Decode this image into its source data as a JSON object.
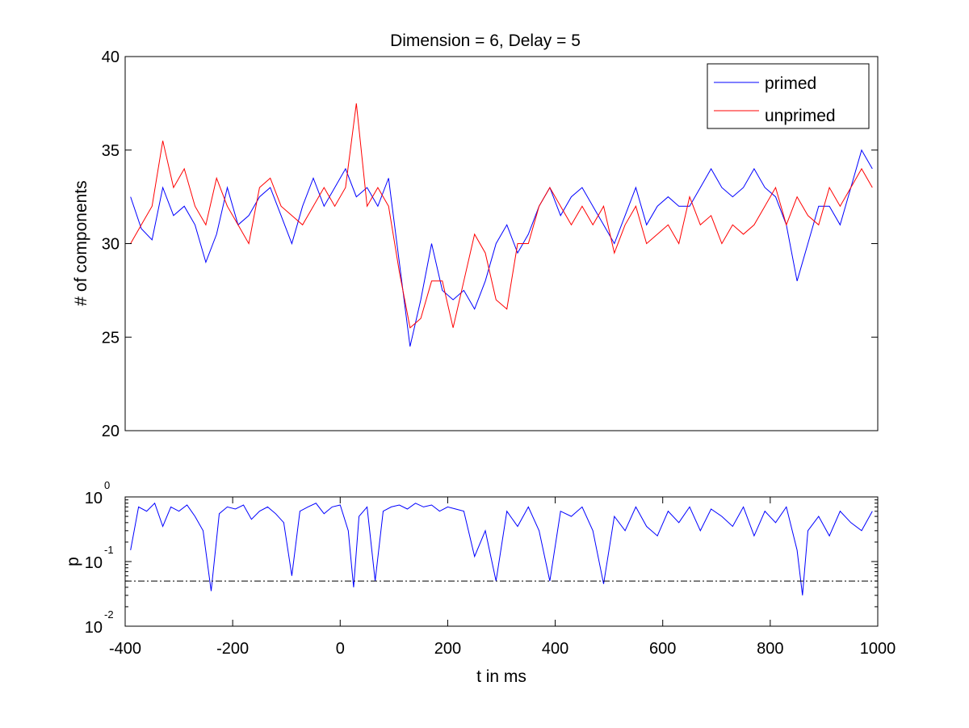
{
  "chart_data": [
    {
      "type": "line",
      "title": "Dimension  = 6, Delay = 5",
      "xlabel": "",
      "ylabel": "# of components",
      "xlim": [
        -400,
        1000
      ],
      "ylim": [
        20,
        40
      ],
      "yticks": [
        "20",
        "25",
        "30",
        "35",
        "40"
      ],
      "grid": false,
      "legend_position": "top-right",
      "series": [
        {
          "name": "primed",
          "color": "#0000ff",
          "x": [
            -390,
            -370,
            -350,
            -330,
            -310,
            -290,
            -270,
            -250,
            -230,
            -210,
            -190,
            -170,
            -150,
            -130,
            -110,
            -90,
            -70,
            -50,
            -30,
            -10,
            10,
            30,
            50,
            70,
            90,
            110,
            130,
            150,
            170,
            190,
            210,
            230,
            250,
            270,
            290,
            310,
            330,
            350,
            370,
            390,
            410,
            430,
            450,
            470,
            490,
            510,
            530,
            550,
            570,
            590,
            610,
            630,
            650,
            670,
            690,
            710,
            730,
            750,
            770,
            790,
            810,
            830,
            850,
            870,
            890,
            910,
            930,
            950,
            970,
            990
          ],
          "values": [
            32.5,
            30.8,
            30.2,
            33,
            31.5,
            32,
            31,
            29,
            30.5,
            33,
            31,
            31.5,
            32.5,
            33,
            31.5,
            30,
            32,
            33.5,
            32,
            33,
            34,
            32.5,
            33,
            32,
            33.5,
            29,
            24.5,
            27,
            30,
            27.5,
            27,
            27.5,
            26.5,
            28,
            30,
            31,
            29.5,
            30.5,
            32,
            33,
            31.5,
            32.5,
            33,
            32,
            31,
            30,
            31.5,
            33,
            31,
            32,
            32.5,
            32,
            32,
            33,
            34,
            33,
            32.5,
            33,
            34,
            33,
            32.5,
            31,
            28,
            30,
            32,
            32,
            31,
            33,
            35,
            34
          ]
        },
        {
          "name": "unprimed",
          "color": "#ff0000",
          "x": [
            -390,
            -370,
            -350,
            -330,
            -310,
            -290,
            -270,
            -250,
            -230,
            -210,
            -190,
            -170,
            -150,
            -130,
            -110,
            -90,
            -70,
            -50,
            -30,
            -10,
            10,
            30,
            50,
            70,
            90,
            110,
            130,
            150,
            170,
            190,
            210,
            230,
            250,
            270,
            290,
            310,
            330,
            350,
            370,
            390,
            410,
            430,
            450,
            470,
            490,
            510,
            530,
            550,
            570,
            590,
            610,
            630,
            650,
            670,
            690,
            710,
            730,
            750,
            770,
            790,
            810,
            830,
            850,
            870,
            890,
            910,
            930,
            950,
            970,
            990
          ],
          "values": [
            30,
            31,
            32,
            35.5,
            33,
            34,
            32,
            31,
            33.5,
            32,
            31,
            30,
            33,
            33.5,
            32,
            31.5,
            31,
            32,
            33,
            32,
            33,
            37.5,
            32,
            33,
            32,
            28.5,
            25.5,
            26,
            28,
            28,
            25.5,
            28,
            30.5,
            29.5,
            27,
            26.5,
            30,
            30,
            32,
            33,
            32,
            31,
            32,
            31,
            32,
            29.5,
            31,
            32,
            30,
            30.5,
            31,
            30,
            32.5,
            31,
            31.5,
            30,
            31,
            30.5,
            31,
            32,
            33,
            31,
            32.5,
            31.5,
            31,
            33,
            32,
            33,
            34,
            33
          ]
        }
      ]
    },
    {
      "type": "line",
      "title": "",
      "xlabel": "t in ms",
      "ylabel": "p",
      "xlim": [
        -400,
        1000
      ],
      "xticks": [
        "-400",
        "-200",
        "0",
        "200",
        "400",
        "600",
        "800",
        "1000"
      ],
      "ylim": [
        0.01,
        1
      ],
      "y_scale": "log",
      "yticks": [
        {
          "base": "10",
          "exp": "-2"
        },
        {
          "base": "10",
          "exp": "-1"
        },
        {
          "base": "10",
          "exp": "0"
        }
      ],
      "threshold_line": {
        "value": 0.05,
        "style": "dash-dot",
        "color": "#000000"
      },
      "series": [
        {
          "name": "",
          "color": "#0000ff",
          "x": [
            -390,
            -375,
            -360,
            -345,
            -330,
            -315,
            -300,
            -285,
            -270,
            -255,
            -240,
            -225,
            -210,
            -195,
            -180,
            -165,
            -150,
            -135,
            -120,
            -105,
            -90,
            -75,
            -60,
            -45,
            -30,
            -15,
            0,
            15,
            25,
            35,
            50,
            65,
            80,
            95,
            110,
            125,
            140,
            155,
            170,
            185,
            200,
            215,
            230,
            250,
            270,
            290,
            310,
            330,
            350,
            370,
            390,
            410,
            430,
            450,
            470,
            490,
            510,
            530,
            550,
            570,
            590,
            610,
            630,
            650,
            670,
            690,
            710,
            730,
            750,
            770,
            790,
            810,
            830,
            850,
            860,
            870,
            890,
            910,
            930,
            950,
            970,
            990
          ],
          "values": [
            0.15,
            0.7,
            0.6,
            0.8,
            0.35,
            0.7,
            0.6,
            0.75,
            0.5,
            0.3,
            0.035,
            0.55,
            0.7,
            0.65,
            0.75,
            0.45,
            0.6,
            0.7,
            0.55,
            0.4,
            0.06,
            0.6,
            0.7,
            0.8,
            0.55,
            0.7,
            0.75,
            0.3,
            0.04,
            0.5,
            0.7,
            0.05,
            0.6,
            0.7,
            0.75,
            0.65,
            0.8,
            0.7,
            0.75,
            0.6,
            0.7,
            0.65,
            0.6,
            0.12,
            0.3,
            0.05,
            0.6,
            0.35,
            0.7,
            0.3,
            0.05,
            0.6,
            0.5,
            0.7,
            0.3,
            0.045,
            0.5,
            0.3,
            0.7,
            0.35,
            0.25,
            0.6,
            0.4,
            0.7,
            0.3,
            0.65,
            0.5,
            0.35,
            0.7,
            0.25,
            0.6,
            0.4,
            0.7,
            0.15,
            0.03,
            0.3,
            0.5,
            0.25,
            0.6,
            0.4,
            0.3,
            0.6
          ]
        }
      ]
    }
  ]
}
